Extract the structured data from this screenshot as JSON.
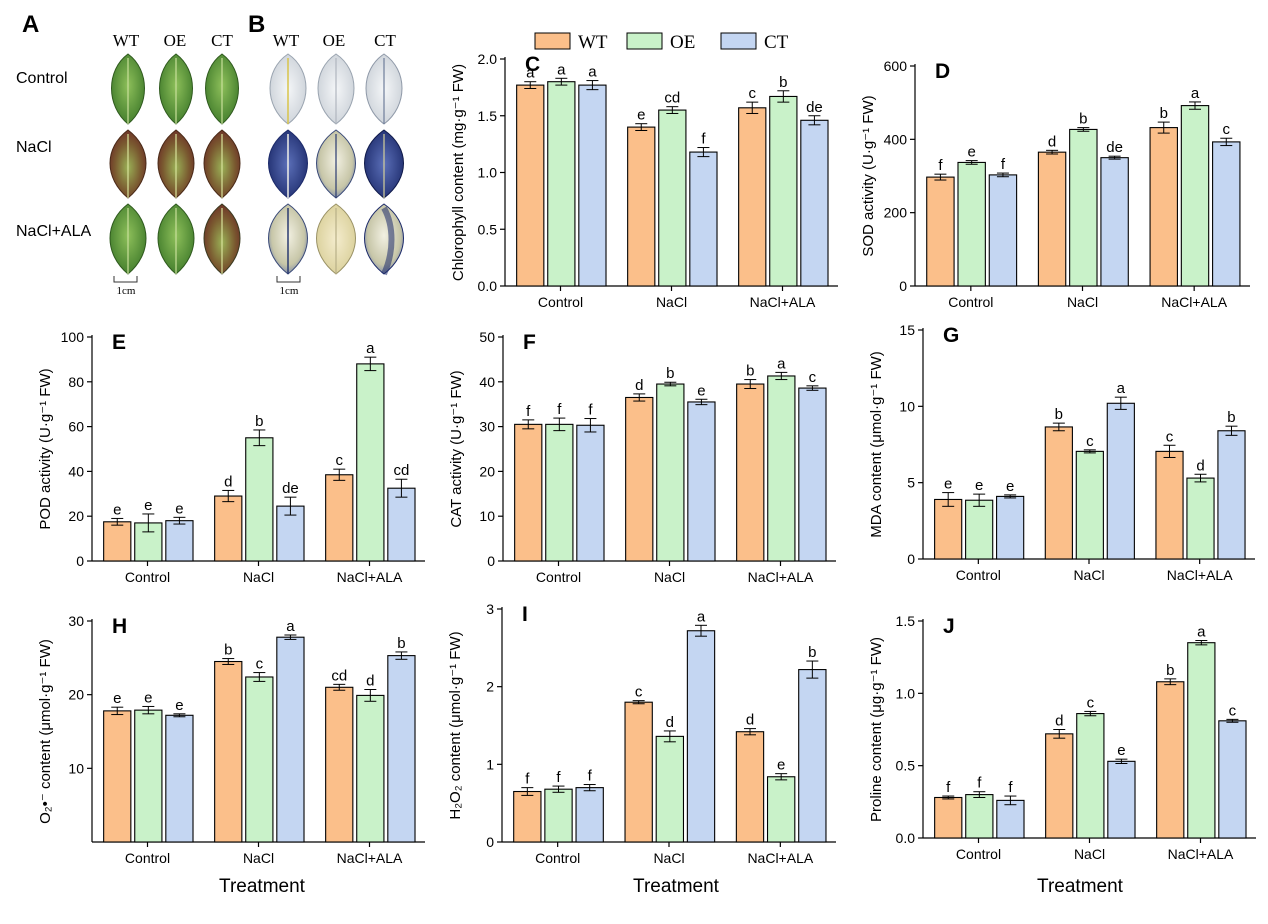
{
  "colors": {
    "WT": "#fbbf8a",
    "OE": "#c9f2c9",
    "CT": "#c4d6f2",
    "axis": "#000000"
  },
  "legend": [
    {
      "key": "WT",
      "label": "WT"
    },
    {
      "key": "OE",
      "label": "OE"
    },
    {
      "key": "CT",
      "label": "CT"
    }
  ],
  "photos": {
    "panel_a_letter": "A",
    "panel_b_letter": "B",
    "columns": [
      "WT",
      "OE",
      "CT"
    ],
    "rows": [
      "Control",
      "NaCl",
      "NaCl+ALA"
    ],
    "scale_a": "1cm",
    "scale_b": "1cm"
  },
  "x_title": "Treatment",
  "chart_data": [
    {
      "id": "C",
      "type": "bar",
      "ylabel": "Chlorophyll content (mg·g⁻¹ FW)",
      "categories": [
        "Control",
        "NaCl",
        "NaCl+ALA"
      ],
      "ylim": [
        0,
        2.0
      ],
      "ticks": [
        "0.0",
        "0.5",
        "1.0",
        "1.5",
        "2.0"
      ],
      "tick_values": [
        0,
        0.5,
        1.0,
        1.5,
        2.0
      ],
      "series": [
        {
          "name": "WT",
          "values": [
            1.77,
            1.4,
            1.57
          ],
          "errors": [
            0.03,
            0.03,
            0.05
          ],
          "letters": [
            "a",
            "e",
            "c"
          ]
        },
        {
          "name": "OE",
          "values": [
            1.8,
            1.55,
            1.67
          ],
          "errors": [
            0.03,
            0.03,
            0.05
          ],
          "letters": [
            "a",
            "cd",
            "b"
          ]
        },
        {
          "name": "CT",
          "values": [
            1.77,
            1.18,
            1.46
          ],
          "errors": [
            0.04,
            0.04,
            0.04
          ],
          "letters": [
            "a",
            "f",
            "de"
          ]
        }
      ]
    },
    {
      "id": "D",
      "type": "bar",
      "ylabel": "SOD activity (U·g⁻¹ FW)",
      "categories": [
        "Control",
        "NaCl",
        "NaCl+ALA"
      ],
      "ylim": [
        0,
        600
      ],
      "ticks": [
        "0",
        "200",
        "400",
        "600"
      ],
      "tick_values": [
        0,
        200,
        400,
        600
      ],
      "series": [
        {
          "name": "WT",
          "values": [
            297,
            365,
            432
          ],
          "errors": [
            8,
            5,
            15
          ],
          "letters": [
            "f",
            "d",
            "b"
          ]
        },
        {
          "name": "OE",
          "values": [
            337,
            427,
            492
          ],
          "errors": [
            5,
            5,
            10
          ],
          "letters": [
            "e",
            "b",
            "a"
          ]
        },
        {
          "name": "CT",
          "values": [
            303,
            350,
            393
          ],
          "errors": [
            5,
            4,
            10
          ],
          "letters": [
            "f",
            "de",
            "c"
          ]
        }
      ]
    },
    {
      "id": "E",
      "type": "bar",
      "ylabel": "POD activity (U·g⁻¹ FW)",
      "categories": [
        "Control",
        "NaCl",
        "NaCl+ALA"
      ],
      "ylim": [
        0,
        100
      ],
      "ticks": [
        "0",
        "20",
        "40",
        "60",
        "80",
        "100"
      ],
      "tick_values": [
        0,
        20,
        40,
        60,
        80,
        100
      ],
      "series": [
        {
          "name": "WT",
          "values": [
            17.5,
            29,
            38.5
          ],
          "errors": [
            1.5,
            2.5,
            2.5
          ],
          "letters": [
            "e",
            "d",
            "c"
          ]
        },
        {
          "name": "OE",
          "values": [
            17,
            55,
            88
          ],
          "errors": [
            4,
            3.5,
            3
          ],
          "letters": [
            "e",
            "b",
            "a"
          ]
        },
        {
          "name": "CT",
          "values": [
            18,
            24.5,
            32.5
          ],
          "errors": [
            1.5,
            4,
            4
          ],
          "letters": [
            "e",
            "de",
            "cd"
          ]
        }
      ]
    },
    {
      "id": "F",
      "type": "bar",
      "ylabel": "CAT activity (U·g⁻¹ FW)",
      "categories": [
        "Control",
        "NaCl",
        "NaCl+ALA"
      ],
      "ylim": [
        0,
        50
      ],
      "ticks": [
        "0",
        "10",
        "20",
        "30",
        "40",
        "50"
      ],
      "tick_values": [
        0,
        10,
        20,
        30,
        40,
        50
      ],
      "series": [
        {
          "name": "WT",
          "values": [
            30.5,
            36.5,
            39.5
          ],
          "errors": [
            1,
            0.8,
            1
          ],
          "letters": [
            "f",
            "d",
            "b"
          ]
        },
        {
          "name": "OE",
          "values": [
            30.5,
            39.5,
            41.3
          ],
          "errors": [
            1.4,
            0.4,
            0.8
          ],
          "letters": [
            "f",
            "b",
            "a"
          ]
        },
        {
          "name": "CT",
          "values": [
            30.3,
            35.5,
            38.6
          ],
          "errors": [
            1.5,
            0.6,
            0.5
          ],
          "letters": [
            "f",
            "e",
            "c"
          ]
        }
      ]
    },
    {
      "id": "G",
      "type": "bar",
      "ylabel": "MDA content (μmol·g⁻¹ FW)",
      "categories": [
        "Control",
        "NaCl",
        "NaCl+ALA"
      ],
      "ylim": [
        0,
        15
      ],
      "ticks": [
        "0",
        "5",
        "10",
        "15"
      ],
      "tick_values": [
        0,
        5,
        10,
        15
      ],
      "series": [
        {
          "name": "WT",
          "values": [
            3.9,
            8.65,
            7.05
          ],
          "errors": [
            0.45,
            0.25,
            0.4
          ],
          "letters": [
            "e",
            "b",
            "c"
          ]
        },
        {
          "name": "OE",
          "values": [
            3.85,
            7.05,
            5.3
          ],
          "errors": [
            0.4,
            0.1,
            0.25
          ],
          "letters": [
            "e",
            "c",
            "d"
          ]
        },
        {
          "name": "CT",
          "values": [
            4.1,
            10.2,
            8.4
          ],
          "errors": [
            0.1,
            0.4,
            0.3
          ],
          "letters": [
            "e",
            "a",
            "b"
          ]
        }
      ]
    },
    {
      "id": "H",
      "type": "bar",
      "ylabel": "O₂•⁻ content (μmol·g⁻¹ FW)",
      "categories": [
        "Control",
        "NaCl",
        "NaCl+ALA"
      ],
      "ylim": [
        0,
        30
      ],
      "ticks": [
        "10",
        "20",
        "30"
      ],
      "tick_values": [
        10,
        20,
        30
      ],
      "series": [
        {
          "name": "WT",
          "values": [
            17.8,
            24.5,
            21.0
          ],
          "errors": [
            0.5,
            0.4,
            0.4
          ],
          "letters": [
            "e",
            "b",
            "cd"
          ]
        },
        {
          "name": "OE",
          "values": [
            17.9,
            22.4,
            19.9
          ],
          "errors": [
            0.5,
            0.6,
            0.8
          ],
          "letters": [
            "e",
            "c",
            "d"
          ]
        },
        {
          "name": "CT",
          "values": [
            17.2,
            27.8,
            25.3
          ],
          "errors": [
            0.2,
            0.3,
            0.5
          ],
          "letters": [
            "e",
            "a",
            "b"
          ]
        }
      ]
    },
    {
      "id": "I",
      "type": "bar",
      "ylabel": "H₂O₂ content (μmol·g⁻¹ FW)",
      "categories": [
        "Control",
        "NaCl",
        "NaCl+ALA"
      ],
      "ylim": [
        0,
        3
      ],
      "ticks": [
        "0",
        "1",
        "2",
        "3"
      ],
      "tick_values": [
        0,
        1,
        2,
        3
      ],
      "series": [
        {
          "name": "WT",
          "values": [
            0.65,
            1.8,
            1.42
          ],
          "errors": [
            0.05,
            0.02,
            0.04
          ],
          "letters": [
            "f",
            "c",
            "d"
          ]
        },
        {
          "name": "OE",
          "values": [
            0.68,
            1.36,
            0.84
          ],
          "errors": [
            0.04,
            0.07,
            0.04
          ],
          "letters": [
            "f",
            "d",
            "e"
          ]
        },
        {
          "name": "CT",
          "values": [
            0.7,
            2.72,
            2.22
          ],
          "errors": [
            0.04,
            0.07,
            0.11
          ],
          "letters": [
            "f",
            "a",
            "b"
          ]
        }
      ]
    },
    {
      "id": "J",
      "type": "bar",
      "ylabel": "Proline content (μg·g⁻¹ FW)",
      "categories": [
        "Control",
        "NaCl",
        "NaCl+ALA"
      ],
      "ylim": [
        0,
        1.5
      ],
      "ticks": [
        "0.0",
        "0.5",
        "1.0",
        "1.5"
      ],
      "tick_values": [
        0,
        0.5,
        1.0,
        1.5
      ],
      "series": [
        {
          "name": "WT",
          "values": [
            0.28,
            0.72,
            1.08
          ],
          "errors": [
            0.01,
            0.03,
            0.02
          ],
          "letters": [
            "f",
            "d",
            "b"
          ]
        },
        {
          "name": "OE",
          "values": [
            0.3,
            0.86,
            1.35
          ],
          "errors": [
            0.02,
            0.015,
            0.015
          ],
          "letters": [
            "f",
            "c",
            "a"
          ]
        },
        {
          "name": "CT",
          "values": [
            0.26,
            0.53,
            0.81
          ],
          "errors": [
            0.03,
            0.015,
            0.01
          ],
          "letters": [
            "f",
            "e",
            "c"
          ]
        }
      ]
    }
  ]
}
